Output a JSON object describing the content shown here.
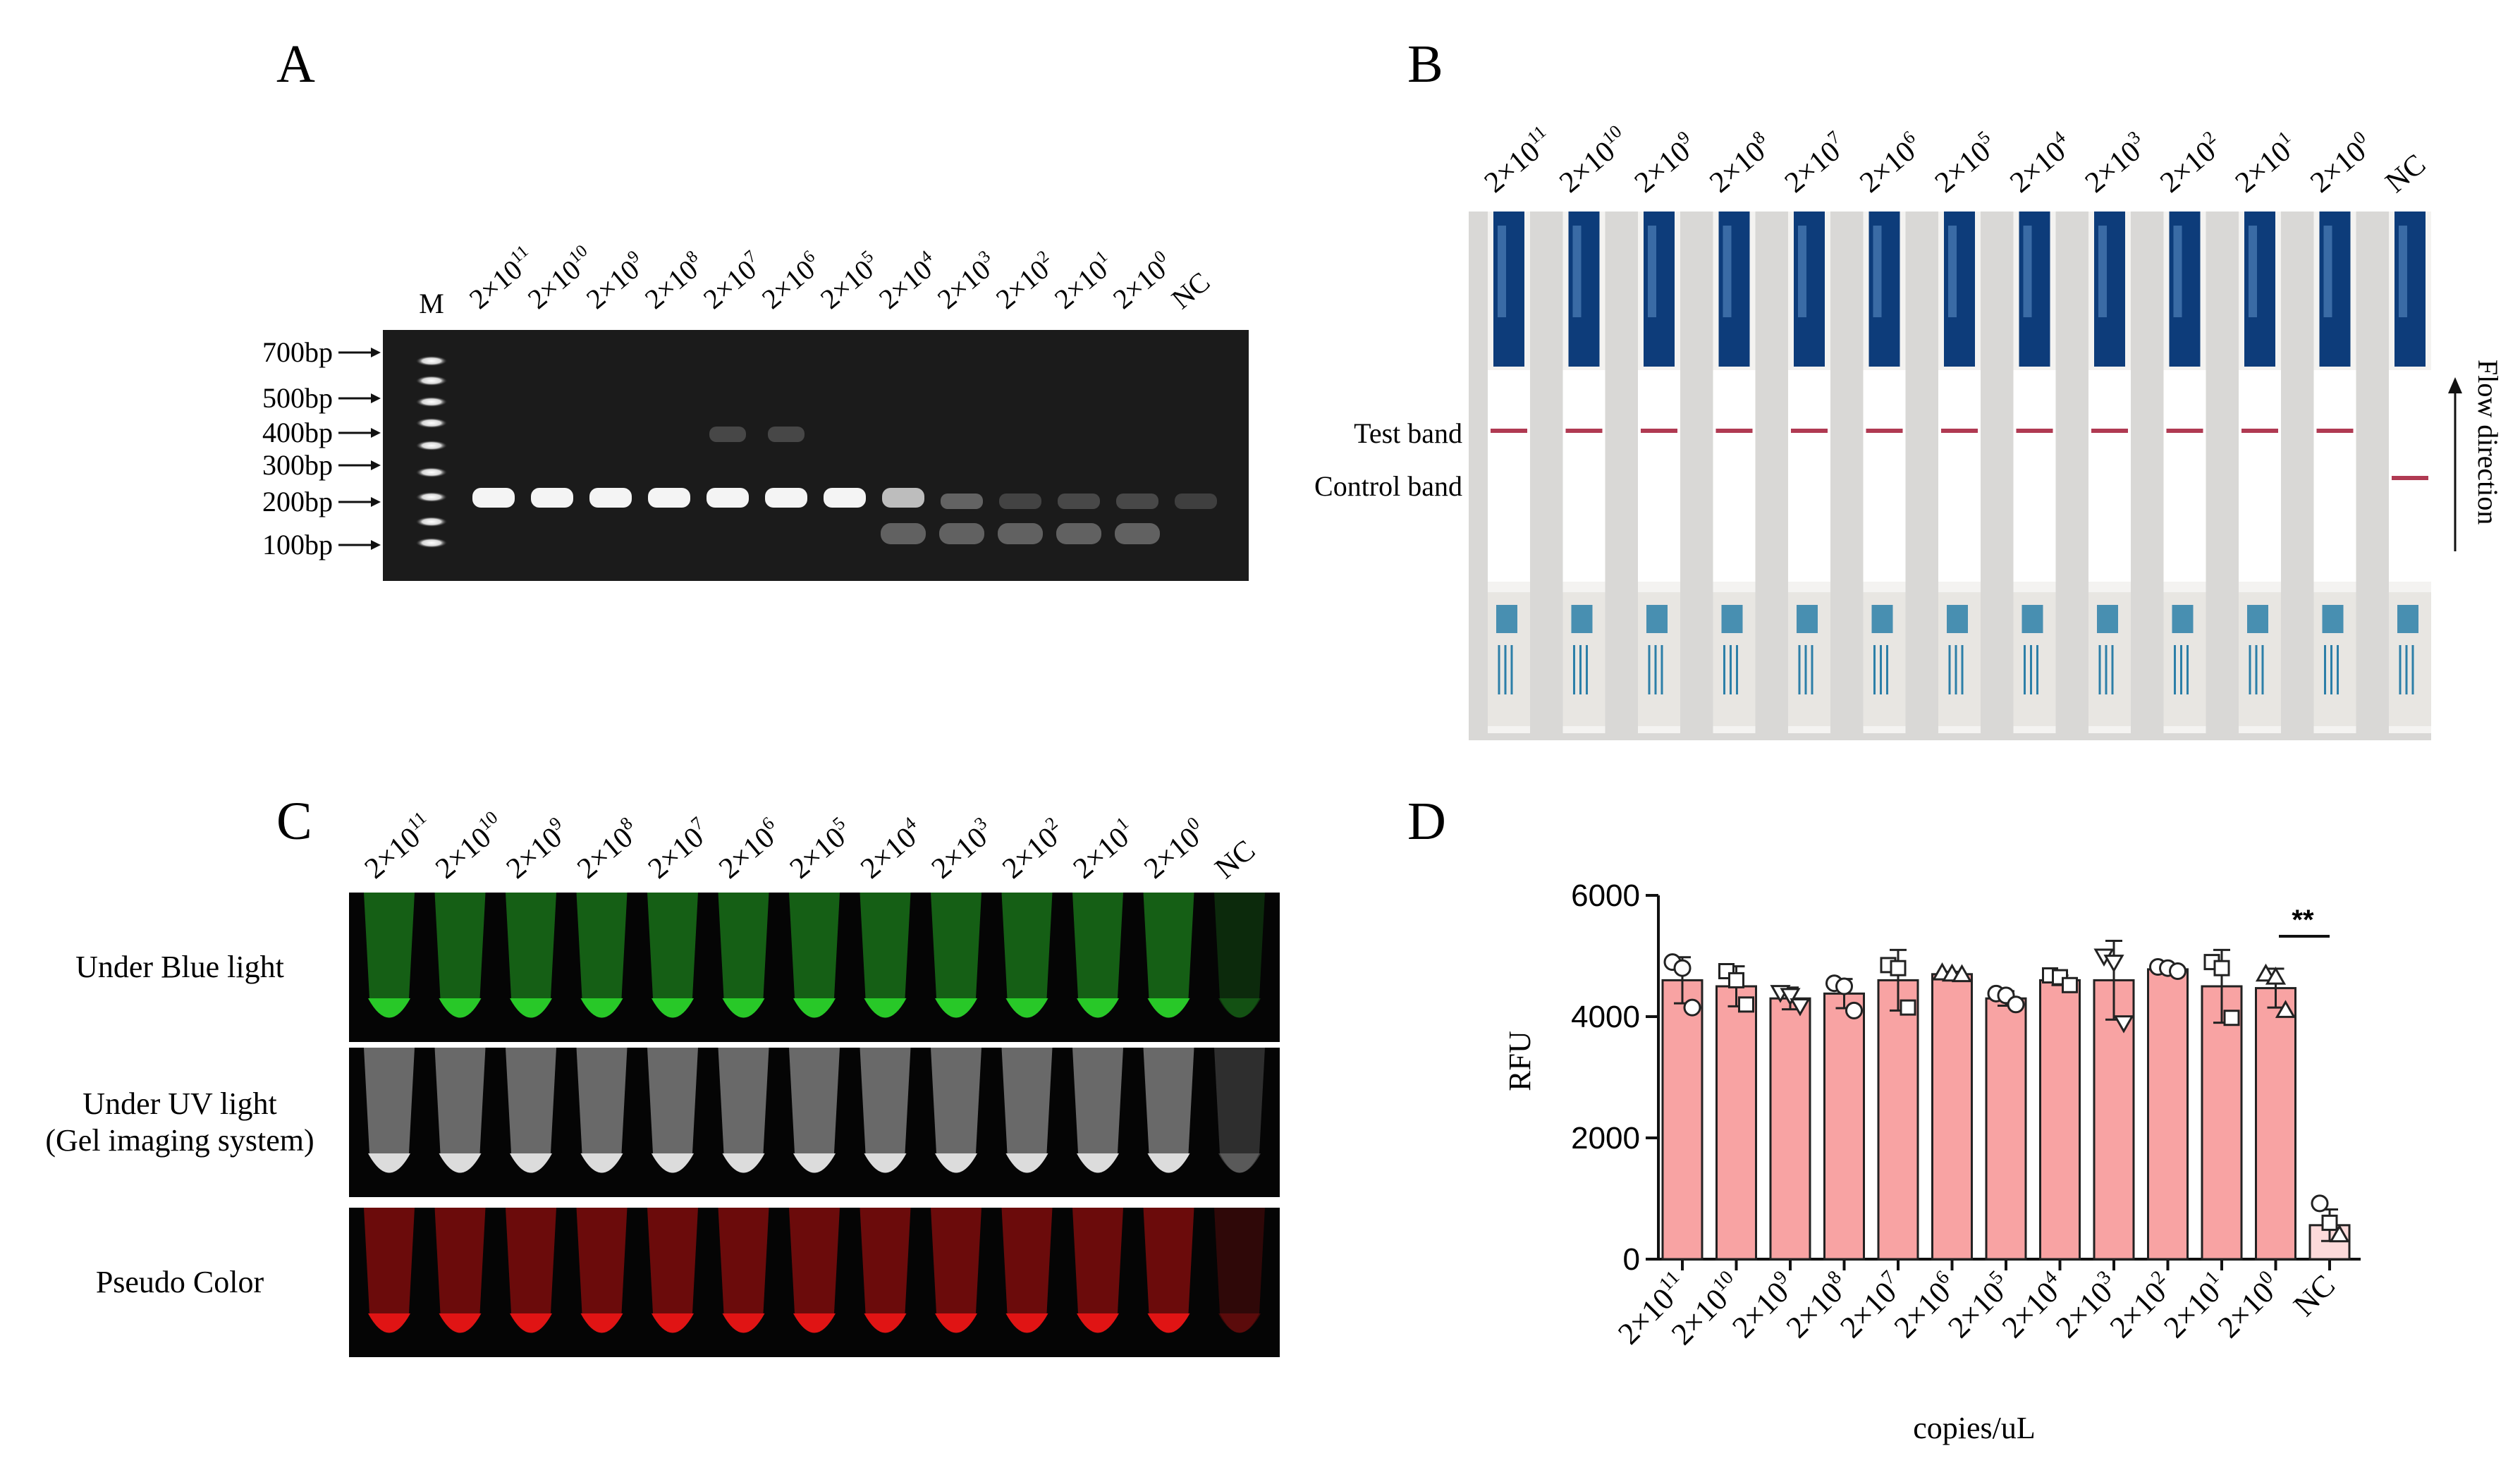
{
  "panels": {
    "A": {
      "letter": "A",
      "marker_lane": "M",
      "lanes": [
        {
          "base": "2×10",
          "exp": "11"
        },
        {
          "base": "2×10",
          "exp": "10"
        },
        {
          "base": "2×10",
          "exp": "9"
        },
        {
          "base": "2×10",
          "exp": "8"
        },
        {
          "base": "2×10",
          "exp": "7"
        },
        {
          "base": "2×10",
          "exp": "6"
        },
        {
          "base": "2×10",
          "exp": "5"
        },
        {
          "base": "2×10",
          "exp": "4"
        },
        {
          "base": "2×10",
          "exp": "3"
        },
        {
          "base": "2×10",
          "exp": "2"
        },
        {
          "base": "2×10",
          "exp": "1"
        },
        {
          "base": "2×10",
          "exp": "0"
        },
        {
          "base": "NC",
          "exp": ""
        }
      ],
      "ladder_labels": [
        "700bp",
        "500bp",
        "400bp",
        "300bp",
        "200bp",
        "100bp"
      ]
    },
    "B": {
      "letter": "B",
      "lanes": [
        {
          "base": "2×10",
          "exp": "11"
        },
        {
          "base": "2×10",
          "exp": "10"
        },
        {
          "base": "2×10",
          "exp": "9"
        },
        {
          "base": "2×10",
          "exp": "8"
        },
        {
          "base": "2×10",
          "exp": "7"
        },
        {
          "base": "2×10",
          "exp": "6"
        },
        {
          "base": "2×10",
          "exp": "5"
        },
        {
          "base": "2×10",
          "exp": "4"
        },
        {
          "base": "2×10",
          "exp": "3"
        },
        {
          "base": "2×10",
          "exp": "2"
        },
        {
          "base": "2×10",
          "exp": "1"
        },
        {
          "base": "2×10",
          "exp": "0"
        },
        {
          "base": "NC",
          "exp": ""
        }
      ],
      "test_band_label": "Test band",
      "control_band_label": "Control band",
      "flow_label": "Flow direction"
    },
    "C": {
      "letter": "C",
      "lanes": [
        {
          "base": "2×10",
          "exp": "11"
        },
        {
          "base": "2×10",
          "exp": "10"
        },
        {
          "base": "2×10",
          "exp": "9"
        },
        {
          "base": "2×10",
          "exp": "8"
        },
        {
          "base": "2×10",
          "exp": "7"
        },
        {
          "base": "2×10",
          "exp": "6"
        },
        {
          "base": "2×10",
          "exp": "5"
        },
        {
          "base": "2×10",
          "exp": "4"
        },
        {
          "base": "2×10",
          "exp": "3"
        },
        {
          "base": "2×10",
          "exp": "2"
        },
        {
          "base": "2×10",
          "exp": "1"
        },
        {
          "base": "2×10",
          "exp": "0"
        },
        {
          "base": "NC",
          "exp": ""
        }
      ],
      "row_labels": [
        [
          "Under  Blue light"
        ],
        [
          "Under UV light",
          "(Gel imaging system)"
        ],
        [
          "Pseudo Color"
        ]
      ],
      "row_colors": [
        "#28c828",
        "#dcdcdc",
        "#e01414"
      ]
    },
    "D": {
      "letter": "D",
      "significance": "**"
    }
  },
  "chart_data": {
    "type": "bar",
    "panel": "D",
    "title": "",
    "xlabel": "copies/uL",
    "ylabel": "RFU",
    "ylim": [
      0,
      6000
    ],
    "yticks": [
      0,
      2000,
      4000,
      6000
    ],
    "categories": [
      {
        "base": "2×10",
        "exp": "11"
      },
      {
        "base": "2×10",
        "exp": "10"
      },
      {
        "base": "2×10",
        "exp": "9"
      },
      {
        "base": "2×10",
        "exp": "8"
      },
      {
        "base": "2×10",
        "exp": "7"
      },
      {
        "base": "2×10",
        "exp": "6"
      },
      {
        "base": "2×10",
        "exp": "5"
      },
      {
        "base": "2×10",
        "exp": "4"
      },
      {
        "base": "2×10",
        "exp": "3"
      },
      {
        "base": "2×10",
        "exp": "2"
      },
      {
        "base": "2×10",
        "exp": "1"
      },
      {
        "base": "2×10",
        "exp": "0"
      },
      {
        "base": "NC",
        "exp": ""
      }
    ],
    "values": [
      4600,
      4500,
      4300,
      4380,
      4600,
      4700,
      4300,
      4600,
      4600,
      4780,
      4500,
      4470,
      560
    ],
    "errors": [
      380,
      330,
      180,
      240,
      500,
      40,
      120,
      80,
      650,
      60,
      600,
      320,
      260
    ],
    "points": [
      [
        4900,
        4800,
        4150
      ],
      [
        4750,
        4600,
        4200
      ],
      [
        4400,
        4350,
        4180
      ],
      [
        4550,
        4500,
        4100
      ],
      [
        4850,
        4800,
        4150
      ],
      [
        4720,
        4700,
        4690
      ],
      [
        4380,
        4350,
        4200
      ],
      [
        4680,
        4650,
        4520
      ],
      [
        5000,
        4900,
        3900
      ],
      [
        4820,
        4800,
        4750
      ],
      [
        4900,
        4800,
        3980
      ],
      [
        4700,
        4650,
        4100
      ],
      [
        920,
        600,
        400
      ]
    ],
    "point_markers": [
      [
        "circle",
        "circle",
        "circle"
      ],
      [
        "square",
        "square",
        "square"
      ],
      [
        "triangle-down",
        "triangle-down",
        "triangle-down"
      ],
      [
        "circle",
        "circle",
        "circle"
      ],
      [
        "square",
        "square",
        "square"
      ],
      [
        "triangle",
        "triangle",
        "triangle"
      ],
      [
        "circle",
        "circle",
        "circle"
      ],
      [
        "square",
        "square",
        "square"
      ],
      [
        "triangle-down",
        "triangle-down",
        "triangle-down"
      ],
      [
        "circle",
        "circle",
        "circle"
      ],
      [
        "square",
        "square",
        "square"
      ],
      [
        "triangle",
        "triangle",
        "triangle"
      ],
      [
        "circle",
        "square",
        "triangle"
      ]
    ],
    "bar_colors": {
      "main": "#f8a3a3",
      "nc": "#fcdada"
    },
    "grid": false,
    "annotations": [
      "**"
    ]
  }
}
